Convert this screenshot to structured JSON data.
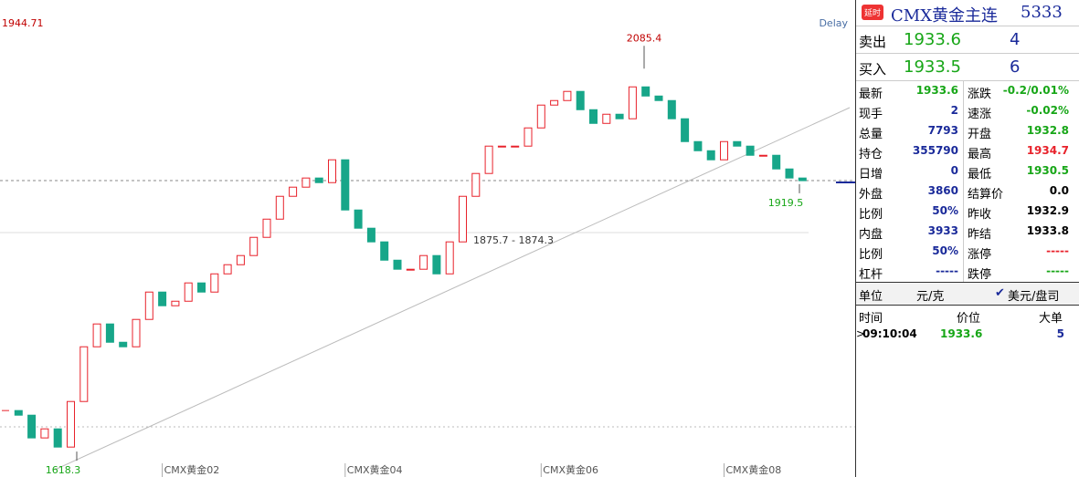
{
  "chart_data": {
    "type": "candlestick",
    "closes": [
      1674.8,
      1669.6,
      1644.0,
      1654.2,
      1633.7,
      1685.0,
      1746.6,
      1772.3,
      1751.7,
      1746.6,
      1777.4,
      1808.2,
      1792.8,
      1797.9,
      1818.5,
      1808.2,
      1828.7,
      1839.0,
      1849.3,
      1869.8,
      1890.3,
      1916.0,
      1926.3,
      1936.6,
      1931.4,
      1957.1,
      1900.6,
      1880.1,
      1864.7,
      1844.1,
      1833.9,
      1833.9,
      1849.3,
      1828.7,
      1864.7,
      1916.0,
      1941.7,
      1972.5,
      1972.5,
      1972.5,
      1993.0,
      2018.7,
      2023.8,
      2034.1,
      2013.5,
      1998.1,
      2008.4,
      2003.3,
      2039.2,
      2028.9,
      2023.8,
      2003.3,
      1977.6,
      1967.3,
      1957.1,
      1977.6,
      1972.5,
      1962.2,
      1962.2,
      1946.8,
      1936.6,
      1933.6
    ],
    "categories": [
      null,
      null,
      null,
      null,
      null,
      null,
      null,
      null,
      null,
      null,
      null,
      null,
      "CMX黄金02",
      null,
      null,
      null,
      null,
      null,
      null,
      null,
      null,
      null,
      null,
      null,
      null,
      null,
      "CMX黄金04",
      null,
      null,
      null,
      null,
      null,
      null,
      null,
      null,
      null,
      null,
      null,
      null,
      null,
      null,
      "CMX黄金06",
      null,
      null,
      null,
      null,
      null,
      null,
      null,
      null,
      null,
      null,
      null,
      null,
      null,
      "CMX黄金08",
      null,
      null,
      null,
      null,
      null,
      null
    ],
    "ylim": [
      1600,
      2137
    ],
    "axis_top_label": "1944.71",
    "delay": "Delay",
    "annotations": [
      2085.4,
      1618.3,
      1919.5
    ],
    "range_label": "1875.7 - 1874.3",
    "up_color": "#e8222b",
    "down_color": "#17a689"
  },
  "panel": {
    "badge": "延时",
    "title": "CMX黄金主连",
    "code": "5333",
    "quotes": [
      [
        "卖出",
        "1933.6",
        "4"
      ],
      [
        "买入",
        "1933.5",
        "6"
      ]
    ],
    "stats": [
      [
        "最新",
        "1933.6",
        "涨跌",
        "-0.2/0.01%"
      ],
      [
        "现手",
        "2",
        "速涨",
        "-0.02%"
      ],
      [
        "总量",
        "7793",
        "开盘",
        "1932.8"
      ],
      [
        "持仓",
        "355790",
        "最高",
        "1934.7"
      ],
      [
        "日增",
        "0",
        "最低",
        "1930.5"
      ],
      [
        "外盘",
        "3860",
        "结算价",
        "0.0"
      ],
      [
        "比例",
        "50%",
        "昨收",
        "1932.9"
      ],
      [
        "内盘",
        "3933",
        "昨结",
        "1933.8"
      ],
      [
        "比例",
        "50%",
        "涨停",
        "-----"
      ],
      [
        "杠杆",
        "-----",
        "跌停",
        "-----"
      ]
    ],
    "units": [
      "单位",
      "元/克",
      "美元/盘司"
    ],
    "trades_header": [
      "时间",
      "价位",
      "大单"
    ],
    "trades": [
      [
        "09:10:04",
        "1933.6",
        "5"
      ]
    ]
  }
}
